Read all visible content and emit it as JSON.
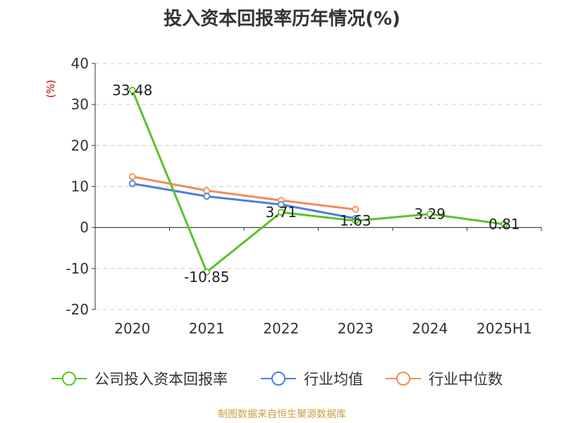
{
  "title": "投入资本回报率历年情况(%)",
  "footer": "制图数据来自恒生聚源数据库",
  "colors": {
    "company": "#5ac229",
    "industry_avg": "#4a7fdc",
    "industry_median": "#f28c57",
    "grid": "#cccccc",
    "axis": "#333333",
    "unit": "#cc0000",
    "footer": "#c8a040"
  },
  "chart_data": {
    "type": "line",
    "ylabel": "(%)",
    "ylim": [
      -20,
      40
    ],
    "yticks": [
      40,
      30,
      20,
      10,
      0,
      -10,
      -20
    ],
    "categories": [
      "2020",
      "2021",
      "2022",
      "2023",
      "2024",
      "2025H1"
    ],
    "grid": true,
    "legend_position": "bottom",
    "series": [
      {
        "name": "公司投入资本回报率",
        "key": "company",
        "values": [
          33.48,
          -10.85,
          3.71,
          1.63,
          3.29,
          0.81
        ],
        "labels": [
          "33.48",
          "-10.85",
          "3.71",
          "1.63",
          "3.29",
          "0.81"
        ]
      },
      {
        "name": "行业均值",
        "key": "industry_avg",
        "values": [
          10.7,
          7.6,
          5.6,
          2.2,
          null,
          null
        ]
      },
      {
        "name": "行业中位数",
        "key": "industry_median",
        "values": [
          12.4,
          9.0,
          6.6,
          4.4,
          null,
          null
        ]
      }
    ]
  }
}
